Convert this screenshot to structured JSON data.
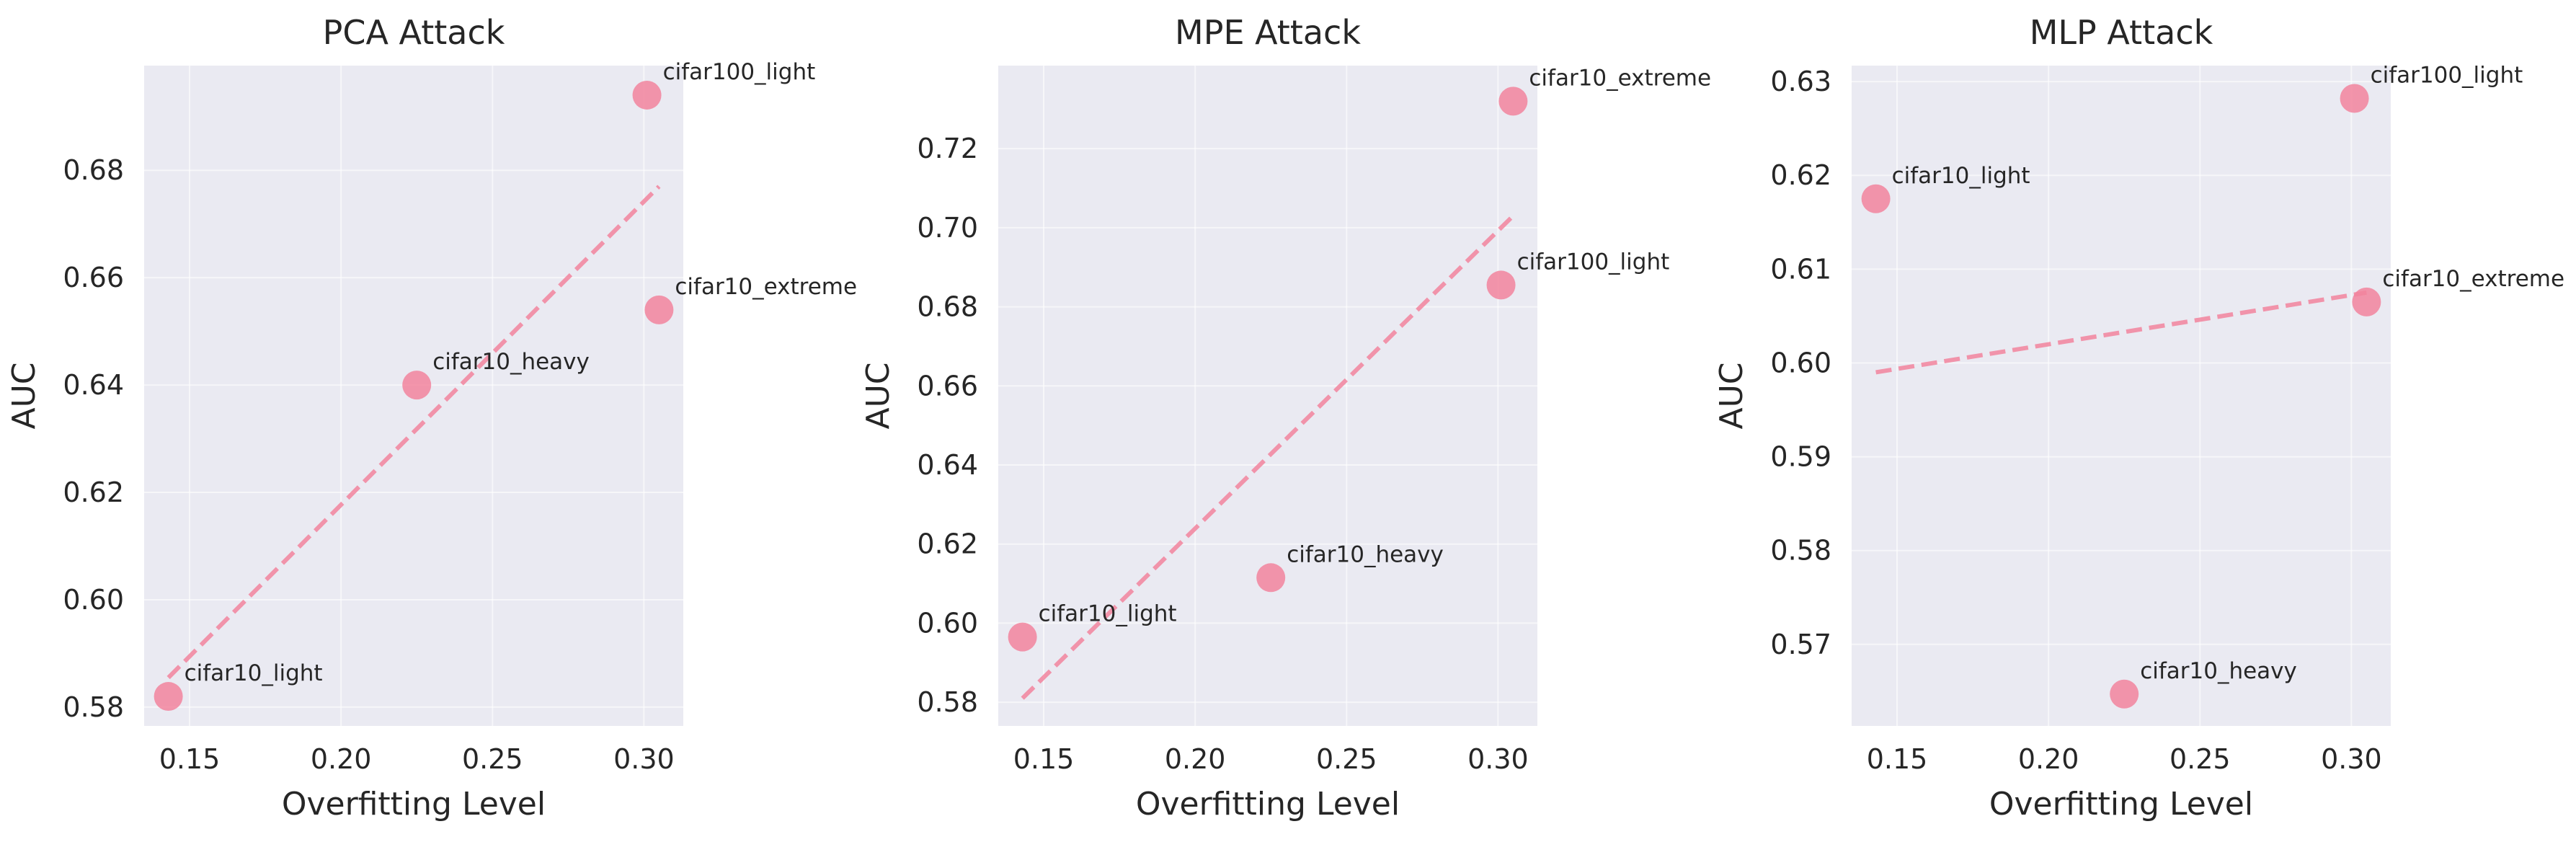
{
  "style": {
    "marker_color": "#f2849e",
    "trend_color": "#f2849e",
    "axes_bg": "#eaeaf2",
    "grid_color": "#ffffff"
  },
  "chart_data": [
    {
      "type": "scatter",
      "title": "PCA Attack",
      "xlabel": "Overfitting Level",
      "ylabel": "AUC",
      "xlim": [
        0.135,
        0.313
      ],
      "ylim": [
        0.5765,
        0.6995
      ],
      "xticks": [
        0.15,
        0.2,
        0.25,
        0.3
      ],
      "xtick_labels": [
        "0.15",
        "0.20",
        "0.25",
        "0.30"
      ],
      "yticks": [
        0.58,
        0.6,
        0.62,
        0.64,
        0.66,
        0.68
      ],
      "ytick_labels": [
        "0.58",
        "0.60",
        "0.62",
        "0.64",
        "0.66",
        "0.68"
      ],
      "grid": true,
      "points": [
        {
          "label": "cifar10_light",
          "x": 0.143,
          "y": 0.582
        },
        {
          "label": "cifar10_heavy",
          "x": 0.225,
          "y": 0.64
        },
        {
          "label": "cifar100_light",
          "x": 0.301,
          "y": 0.694
        },
        {
          "label": "cifar10_extreme",
          "x": 0.305,
          "y": 0.654
        }
      ],
      "trendline": {
        "x": [
          0.143,
          0.305
        ],
        "y": [
          0.5855,
          0.677
        ]
      }
    },
    {
      "type": "scatter",
      "title": "MPE Attack",
      "xlabel": "Overfitting Level",
      "ylabel": "AUC",
      "xlim": [
        0.135,
        0.313
      ],
      "ylim": [
        0.574,
        0.741
      ],
      "xticks": [
        0.15,
        0.2,
        0.25,
        0.3
      ],
      "xtick_labels": [
        "0.15",
        "0.20",
        "0.25",
        "0.30"
      ],
      "yticks": [
        0.58,
        0.6,
        0.62,
        0.64,
        0.66,
        0.68,
        0.7,
        0.72
      ],
      "ytick_labels": [
        "0.58",
        "0.60",
        "0.62",
        "0.64",
        "0.66",
        "0.68",
        "0.70",
        "0.72"
      ],
      "grid": true,
      "points": [
        {
          "label": "cifar10_light",
          "x": 0.143,
          "y": 0.5965
        },
        {
          "label": "cifar10_heavy",
          "x": 0.225,
          "y": 0.6115
        },
        {
          "label": "cifar100_light",
          "x": 0.301,
          "y": 0.6855
        },
        {
          "label": "cifar10_extreme",
          "x": 0.305,
          "y": 0.732
        }
      ],
      "trendline": {
        "x": [
          0.143,
          0.305
        ],
        "y": [
          0.581,
          0.703
        ]
      }
    },
    {
      "type": "scatter",
      "title": "MLP Attack",
      "xlabel": "Overfitting Level",
      "ylabel": "AUC",
      "xlim": [
        0.135,
        0.313
      ],
      "ylim": [
        0.5613,
        0.6317
      ],
      "xticks": [
        0.15,
        0.2,
        0.25,
        0.3
      ],
      "xtick_labels": [
        "0.15",
        "0.20",
        "0.25",
        "0.30"
      ],
      "yticks": [
        0.57,
        0.58,
        0.59,
        0.6,
        0.61,
        0.62,
        0.63
      ],
      "ytick_labels": [
        "0.57",
        "0.58",
        "0.59",
        "0.60",
        "0.61",
        "0.62",
        "0.63"
      ],
      "grid": true,
      "points": [
        {
          "label": "cifar10_light",
          "x": 0.143,
          "y": 0.6175
        },
        {
          "label": "cifar10_heavy",
          "x": 0.225,
          "y": 0.5647
        },
        {
          "label": "cifar100_light",
          "x": 0.301,
          "y": 0.6282
        },
        {
          "label": "cifar10_extreme",
          "x": 0.305,
          "y": 0.6065
        }
      ],
      "trendline": {
        "x": [
          0.143,
          0.305
        ],
        "y": [
          0.599,
          0.6075
        ]
      }
    }
  ]
}
